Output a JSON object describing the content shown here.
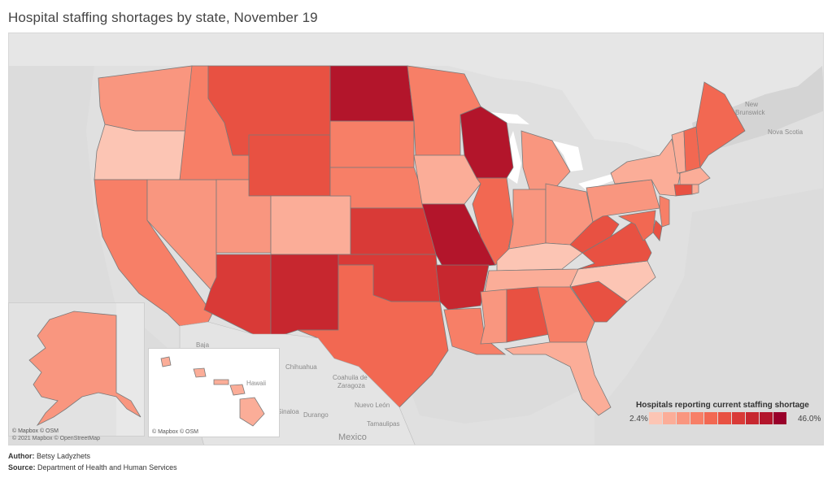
{
  "title": "Hospital staffing shortages by state, November 19",
  "legend": {
    "title": "Hospitals reporting current staffing shortage",
    "min_label": "2.4%",
    "max_label": "46.0%",
    "colors": [
      "#fcc5b4",
      "#fbad98",
      "#f9967f",
      "#f77f67",
      "#f26852",
      "#e85142",
      "#d93a37",
      "#c7272f",
      "#b3152b",
      "#99002a"
    ]
  },
  "geo_labels": {
    "new_brunswick_1": "New",
    "new_brunswick_2": "Brunswick",
    "nova_scotia": "Nova Scotia",
    "baja": "Baja",
    "chihuahua": "Chihuahua",
    "coahuila_1": "Coahuila de",
    "coahuila_2": "Zaragoza",
    "nuevo_leon": "Nuevo León",
    "durango": "Durango",
    "sinaloa": "Sinaloa",
    "tamaulipas": "Tamaulipas",
    "mexico": "Mexico",
    "hawaii": "Hawaii"
  },
  "map_credit": "© 2021 Mapbox © OpenStreetMap",
  "inset_credit_ak": "© Mapbox © OSM",
  "inset_credit_hi": "© Mapbox © OSM",
  "footer": {
    "author_label": "Author:",
    "author_value": "Betsy Ladyzhets",
    "source_label": "Source:",
    "source_value": "Department of Health and Human Services"
  },
  "state_colors": {
    "WA": "#f9967f",
    "OR": "#fcc5b4",
    "CA": "#f77f67",
    "NV": "#f9967f",
    "ID": "#f77f67",
    "MT": "#e85142",
    "WY": "#e85142",
    "UT": "#f9967f",
    "AZ": "#d93a37",
    "CO": "#fbad98",
    "NM": "#c7272f",
    "ND": "#b3152b",
    "SD": "#f77f67",
    "NE": "#f77f67",
    "KS": "#d93a37",
    "OK": "#d93a37",
    "TX": "#f26852",
    "MN": "#f77f67",
    "IA": "#fbad98",
    "MO": "#b3152b",
    "AR": "#c7272f",
    "LA": "#f77f67",
    "WI": "#b3152b",
    "IL": "#f26852",
    "MI": "#f9967f",
    "IN": "#f9967f",
    "OH": "#f9967f",
    "KY": "#fcc5b4",
    "TN": "#fbad98",
    "MS": "#f9967f",
    "AL": "#e85142",
    "GA": "#f77f67",
    "FL": "#fbad98",
    "SC": "#e85142",
    "NC": "#fcc5b4",
    "VA": "#e85142",
    "WV": "#e85142",
    "PA": "#f9967f",
    "NY": "#fbad98",
    "VT": "#fbad98",
    "NH": "#f26852",
    "ME": "#f26852",
    "MA": "#fbad98",
    "CT": "#e85142",
    "RI": "#fbad98",
    "NJ": "#f77f67",
    "DE": "#e85142",
    "MD": "#f26852",
    "AK": "#f9967f",
    "HI": "#fbad98"
  }
}
